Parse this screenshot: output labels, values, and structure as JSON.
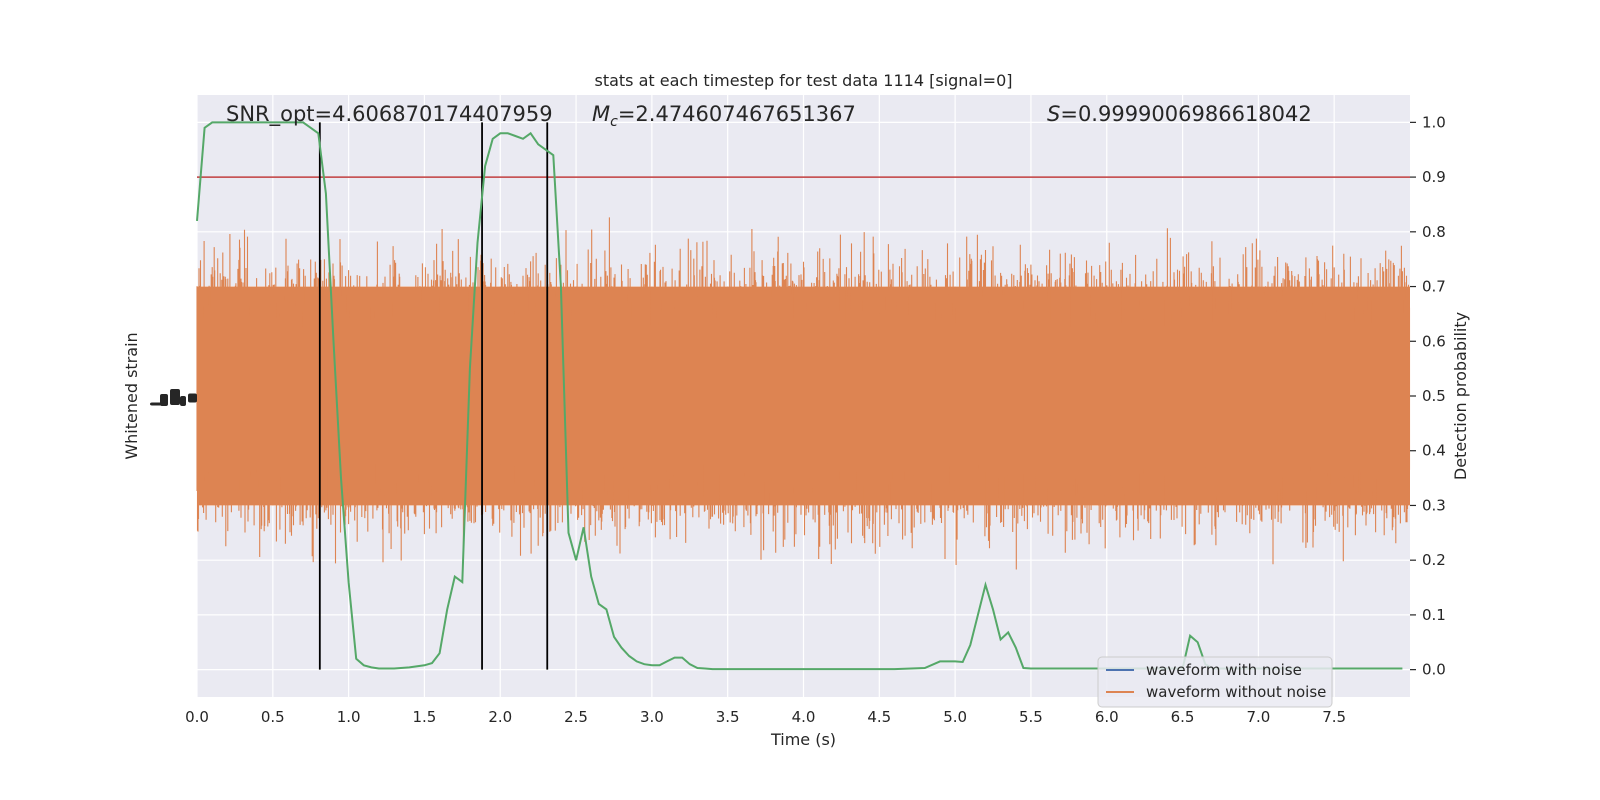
{
  "chart_data": {
    "type": "line",
    "title": "stats at each timestep for test data 1114 [signal=0]",
    "xlabel": "Time (s)",
    "ylabel_left": "Whitened strain",
    "ylabel_right": "Detection probability",
    "xlim": [
      0.0,
      8.0
    ],
    "ylim_right": [
      -0.05,
      1.05
    ],
    "grid": true,
    "legend_position": "bottom-right",
    "x_ticks": [
      "0.0",
      "0.5",
      "1.0",
      "1.5",
      "2.0",
      "2.5",
      "3.0",
      "3.5",
      "4.0",
      "4.5",
      "5.0",
      "5.5",
      "6.0",
      "6.5",
      "7.0",
      "7.5"
    ],
    "y_right_ticks": [
      "0.0",
      "0.1",
      "0.2",
      "0.3",
      "0.4",
      "0.5",
      "0.6",
      "0.7",
      "0.8",
      "0.9",
      "1.0"
    ],
    "annotations": {
      "snr": "SNR_opt=4.606870174407959",
      "mc_symbol": "M",
      "mc_sub": "c",
      "mc_value": "=2.474607467651367",
      "s_symbol": "S",
      "s_value": "=0.9999006986618042"
    },
    "threshold": {
      "value": 0.9,
      "color": "#c03d3e"
    },
    "event_lines_x": [
      0.81,
      1.88,
      2.31
    ],
    "series": [
      {
        "name": "waveform with noise",
        "color": "#4c72b0",
        "values": []
      },
      {
        "name": "waveform without noise",
        "color": "#dd8452",
        "amplitude_band": [
          0.0,
          1.0
        ]
      },
      {
        "color": "#55a868",
        "x": [
          0.0,
          0.05,
          0.1,
          0.2,
          0.3,
          0.4,
          0.5,
          0.6,
          0.7,
          0.75,
          0.8,
          0.85,
          0.9,
          0.95,
          1.0,
          1.05,
          1.1,
          1.15,
          1.2,
          1.3,
          1.4,
          1.5,
          1.55,
          1.6,
          1.65,
          1.7,
          1.75,
          1.8,
          1.85,
          1.9,
          1.95,
          2.0,
          2.05,
          2.1,
          2.15,
          2.2,
          2.25,
          2.3,
          2.35,
          2.4,
          2.45,
          2.5,
          2.55,
          2.6,
          2.65,
          2.7,
          2.75,
          2.8,
          2.85,
          2.9,
          2.95,
          3.0,
          3.05,
          3.1,
          3.15,
          3.2,
          3.25,
          3.3,
          3.35,
          3.4,
          3.45,
          3.5,
          3.6,
          3.7,
          3.8,
          4.0,
          4.2,
          4.4,
          4.6,
          4.8,
          4.9,
          5.0,
          5.05,
          5.1,
          5.2,
          5.25,
          5.3,
          5.35,
          5.4,
          5.45,
          5.5,
          5.55,
          5.6,
          5.65,
          5.7,
          5.8,
          5.9,
          6.0,
          6.1,
          6.2,
          6.3,
          6.4,
          6.5,
          6.55,
          6.6,
          6.65,
          6.7,
          6.75,
          6.8,
          6.9,
          7.0,
          7.2,
          7.4,
          7.6,
          7.8,
          7.95
        ],
        "values": [
          0.82,
          0.99,
          1.0,
          1.0,
          1.0,
          1.0,
          1.0,
          1.0,
          1.0,
          0.99,
          0.98,
          0.87,
          0.6,
          0.35,
          0.16,
          0.02,
          0.008,
          0.004,
          0.002,
          0.002,
          0.004,
          0.008,
          0.012,
          0.03,
          0.11,
          0.17,
          0.16,
          0.55,
          0.78,
          0.92,
          0.97,
          0.98,
          0.98,
          0.975,
          0.97,
          0.98,
          0.96,
          0.95,
          0.94,
          0.7,
          0.25,
          0.2,
          0.26,
          0.17,
          0.12,
          0.11,
          0.06,
          0.04,
          0.025,
          0.015,
          0.01,
          0.008,
          0.008,
          0.015,
          0.022,
          0.022,
          0.01,
          0.003,
          0.002,
          0.001,
          0.001,
          0.001,
          0.001,
          0.001,
          0.001,
          0.001,
          0.001,
          0.001,
          0.001,
          0.003,
          0.015,
          0.015,
          0.014,
          0.045,
          0.155,
          0.11,
          0.055,
          0.068,
          0.04,
          0.003,
          0.002,
          0.002,
          0.002,
          0.002,
          0.002,
          0.002,
          0.002,
          0.002,
          0.002,
          0.002,
          0.002,
          0.002,
          0.002,
          0.062,
          0.05,
          0.01,
          0.002,
          0.002,
          0.002,
          0.002,
          0.002,
          0.002,
          0.002,
          0.002,
          0.002,
          0.002
        ]
      }
    ]
  }
}
